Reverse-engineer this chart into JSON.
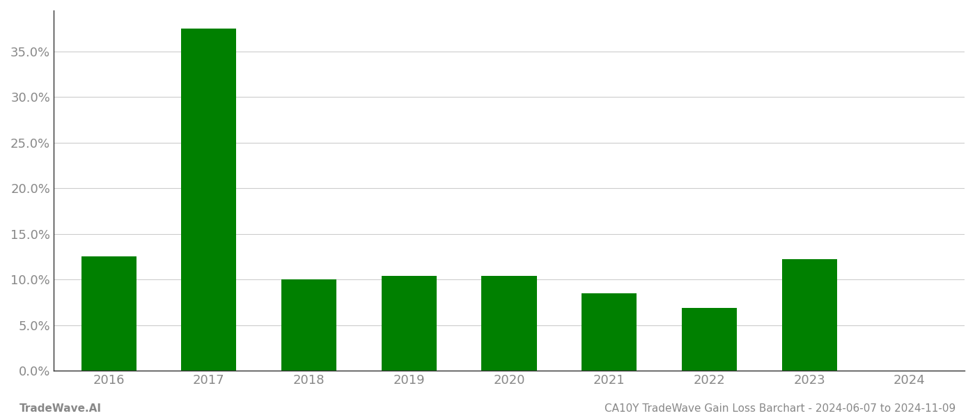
{
  "categories": [
    "2016",
    "2017",
    "2018",
    "2019",
    "2020",
    "2021",
    "2022",
    "2023",
    "2024"
  ],
  "values": [
    0.125,
    0.375,
    0.1,
    0.104,
    0.104,
    0.085,
    0.069,
    0.122,
    0.0
  ],
  "bar_color": "#008000",
  "background_color": "#ffffff",
  "grid_color": "#cccccc",
  "axis_label_color": "#888888",
  "ylim": [
    0,
    0.395
  ],
  "yticks": [
    0.0,
    0.05,
    0.1,
    0.15,
    0.2,
    0.25,
    0.3,
    0.35
  ],
  "footer_left": "TradeWave.AI",
  "footer_right": "CA10Y TradeWave Gain Loss Barchart - 2024-06-07 to 2024-11-09",
  "footer_color": "#888888",
  "footer_fontsize": 11,
  "bar_width": 0.55,
  "tick_fontsize": 13,
  "spine_color": "#333333",
  "left_spine_color": "#333333"
}
